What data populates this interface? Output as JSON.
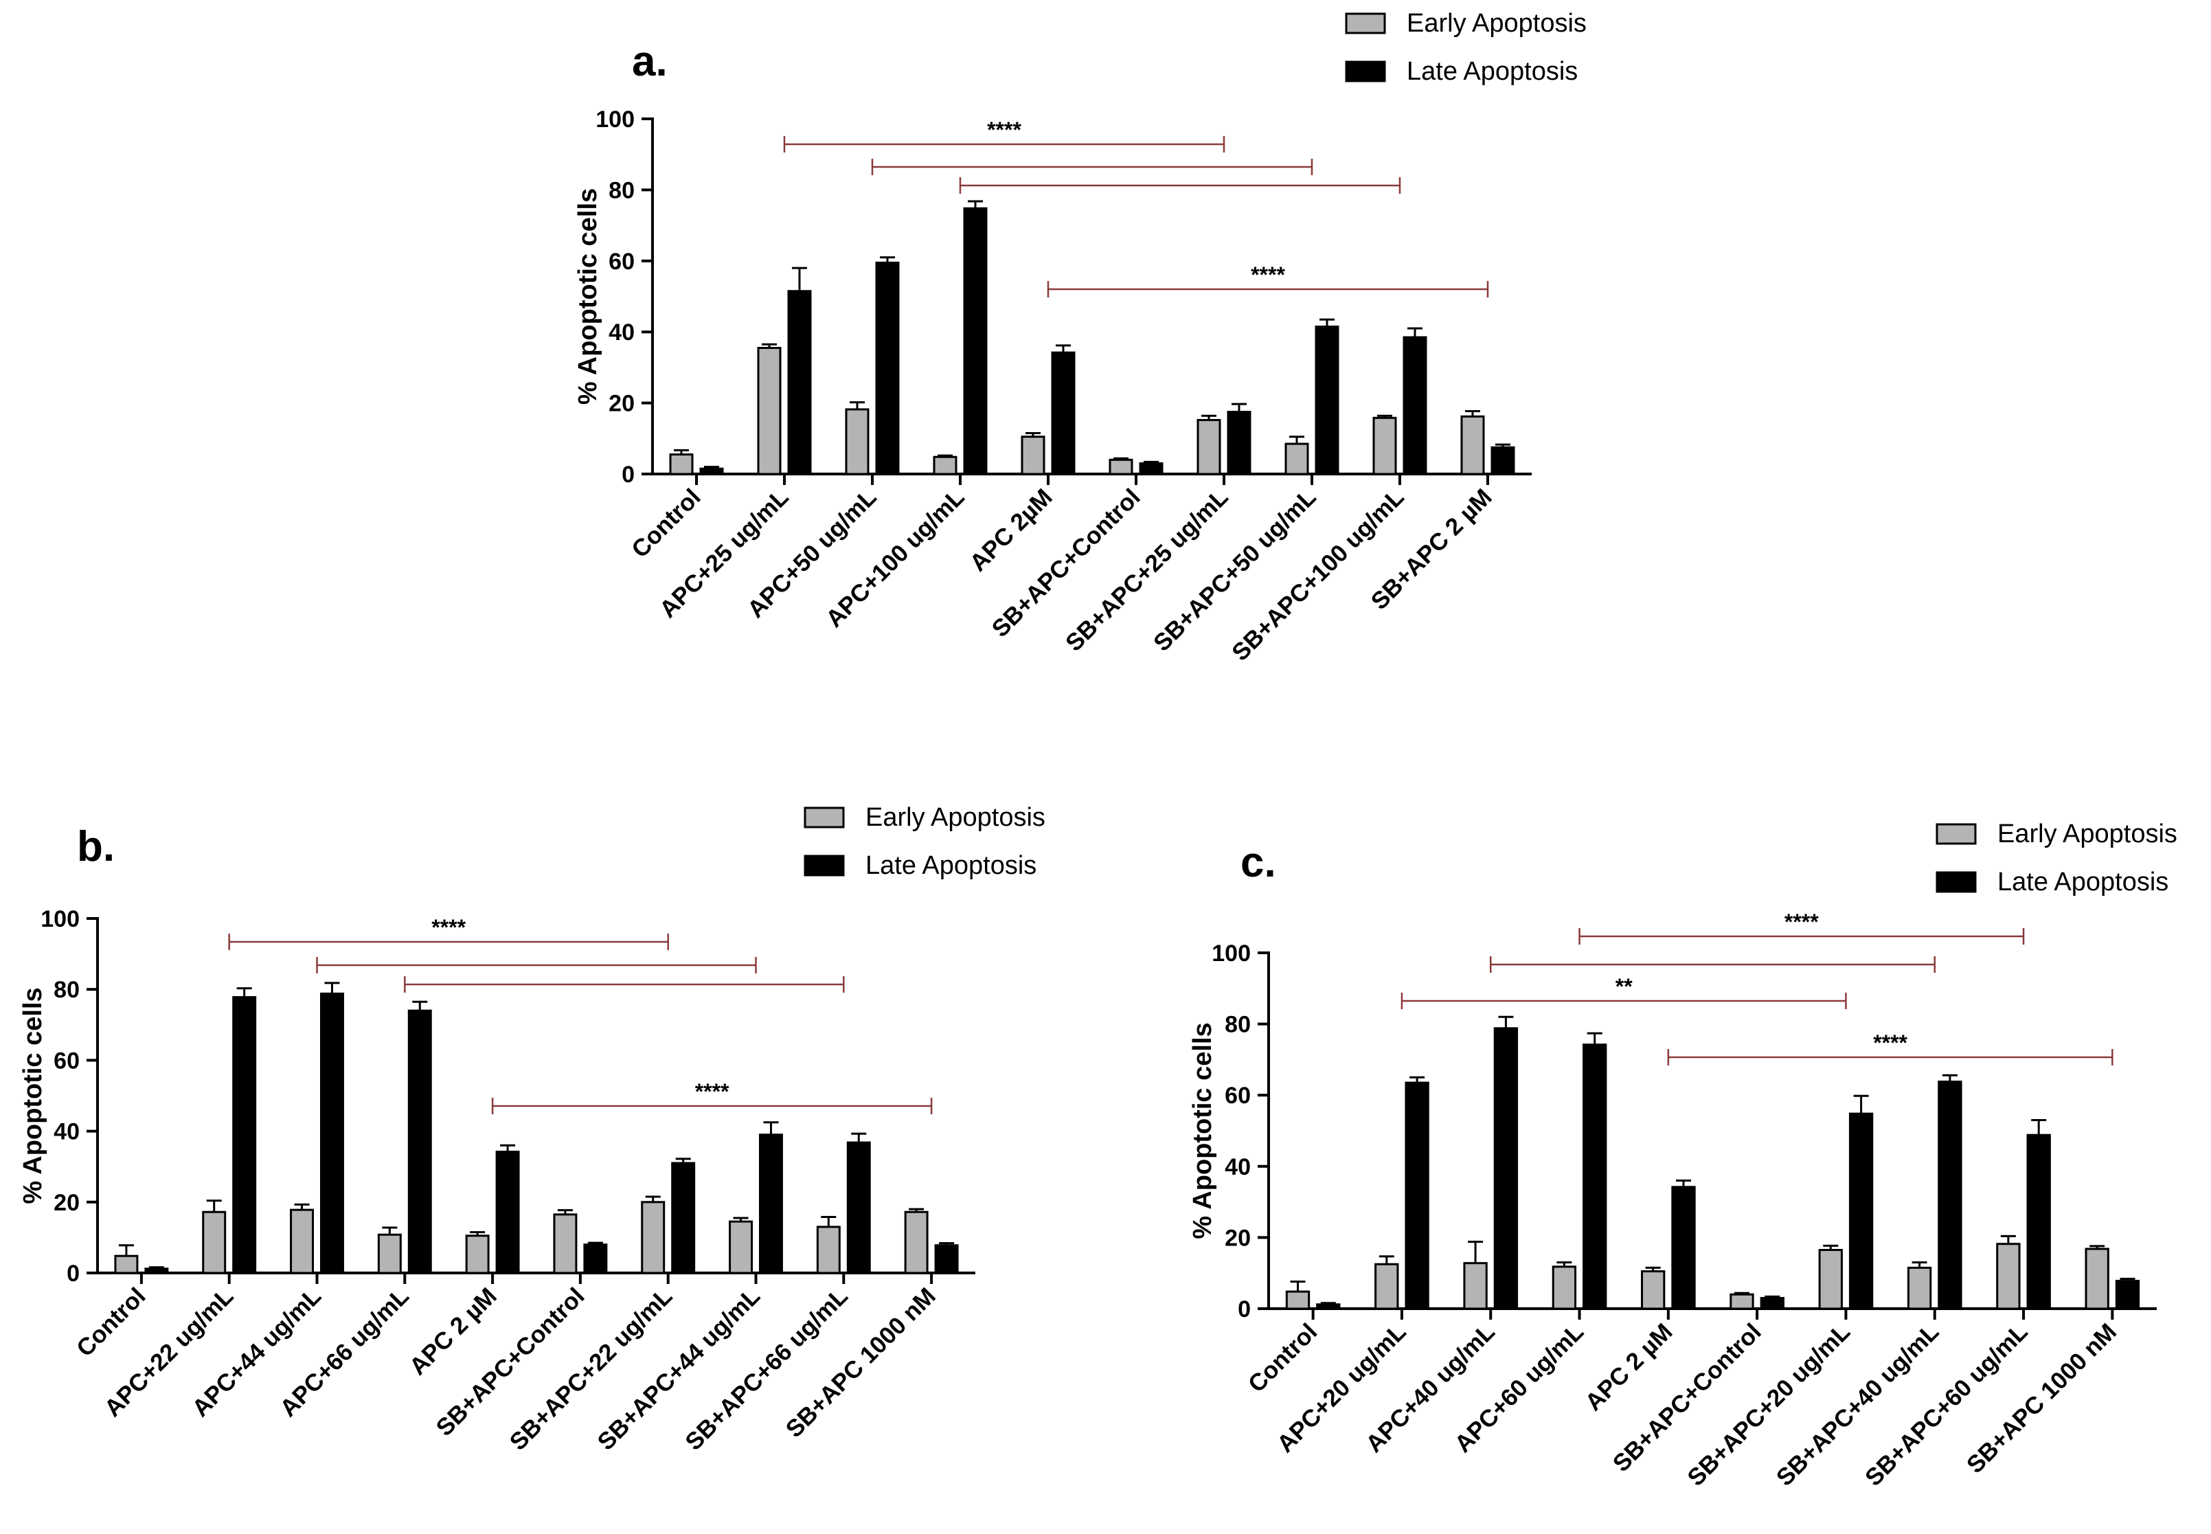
{
  "legend": {
    "early": "Early Apoptosis",
    "late": "Late Apoptosis"
  },
  "colors": {
    "early": "#b4b4b4",
    "late": "#000000",
    "bracket": "#8a3a3a"
  },
  "chart_data": [
    {
      "id": "a",
      "panel_label": "a.",
      "type": "bar",
      "ylabel": "% Apoptotic cells",
      "ylim": [
        0,
        100
      ],
      "yticks": [
        0,
        20,
        40,
        60,
        80,
        100
      ],
      "categories": [
        "Control",
        "APC+25 ug/mL",
        "APC+50 ug/mL",
        "APC+100 ug/mL",
        "APC 2µM",
        "SB+APC+Control",
        "SB+APC+25 ug/mL",
        "SB+APC+50 ug/mL",
        "SB+APC+100 ug/mL",
        "SB+APC 2 µM"
      ],
      "series": [
        {
          "name": "Early Apoptosis",
          "values": [
            5.5,
            35.5,
            18.2,
            4.8,
            10.5,
            4.0,
            15.2,
            8.5,
            15.8,
            16.2
          ],
          "errors": [
            1.2,
            1.0,
            2.0,
            0.4,
            1.0,
            0.4,
            1.2,
            2.0,
            0.6,
            1.5
          ]
        },
        {
          "name": "Late Apoptosis",
          "values": [
            1.5,
            51.5,
            59.5,
            74.8,
            34.2,
            3.0,
            17.5,
            41.5,
            38.5,
            7.5
          ],
          "errors": [
            0.5,
            6.5,
            1.5,
            2.0,
            2.0,
            0.4,
            2.2,
            2.0,
            2.5,
            0.8
          ]
        }
      ],
      "brackets": [
        {
          "from": 1,
          "to": 6,
          "label": "****"
        },
        {
          "from": 2,
          "to": 7,
          "label": ""
        },
        {
          "from": 3,
          "to": 8,
          "label": ""
        },
        {
          "from": 4,
          "to": 9,
          "label": "****"
        }
      ]
    },
    {
      "id": "b",
      "panel_label": "b.",
      "type": "bar",
      "ylabel": "% Apoptotic cells",
      "ylim": [
        0,
        100
      ],
      "yticks": [
        0,
        20,
        40,
        60,
        80,
        100
      ],
      "categories": [
        "Control",
        "APC+22 ug/mL",
        "APC+44 ug/mL",
        "APC+66 ug/mL",
        "APC 2 µM",
        "SB+APC+Control",
        "SB+APC+22 ug/mL",
        "SB+APC+44 ug/mL",
        "SB+APC+66 ug/mL",
        "SB+APC 1000 nM"
      ],
      "series": [
        {
          "name": "Early Apoptosis",
          "values": [
            4.8,
            17.2,
            17.8,
            10.8,
            10.5,
            16.5,
            20.0,
            14.5,
            13.0,
            17.2
          ],
          "errors": [
            3.0,
            3.2,
            1.5,
            2.0,
            1.0,
            1.2,
            1.5,
            1.0,
            2.8,
            0.8
          ]
        },
        {
          "name": "Late Apoptosis",
          "values": [
            1.2,
            77.8,
            78.8,
            74.0,
            34.2,
            8.0,
            31.0,
            39.0,
            36.8,
            7.8
          ],
          "errors": [
            0.4,
            2.5,
            3.0,
            2.5,
            1.8,
            0.5,
            1.2,
            3.5,
            2.5,
            0.6
          ]
        }
      ],
      "brackets": [
        {
          "from": 1,
          "to": 6,
          "label": "****"
        },
        {
          "from": 2,
          "to": 7,
          "label": ""
        },
        {
          "from": 3,
          "to": 8,
          "label": ""
        },
        {
          "from": 4,
          "to": 9,
          "label": "****"
        }
      ]
    },
    {
      "id": "c",
      "panel_label": "c.",
      "type": "bar",
      "ylabel": "% Apoptotic cells",
      "ylim": [
        0,
        100
      ],
      "yticks": [
        0,
        20,
        40,
        60,
        80,
        100
      ],
      "categories": [
        "Control",
        "APC+20 ug/mL",
        "APC+40 ug/mL",
        "APC+60 ug/mL",
        "APC 2 µM",
        "SB+APC+Control",
        "SB+APC+20 ug/mL",
        "SB+APC+40 ug/mL",
        "SB+APC+60 ug/mL",
        "SB+APC 1000 nM"
      ],
      "series": [
        {
          "name": "Early Apoptosis",
          "values": [
            4.8,
            12.5,
            12.8,
            11.8,
            10.5,
            4.0,
            16.5,
            11.5,
            18.2,
            16.8
          ],
          "errors": [
            2.8,
            2.2,
            6.0,
            1.2,
            1.0,
            0.4,
            1.2,
            1.5,
            2.2,
            0.8
          ]
        },
        {
          "name": "Late Apoptosis",
          "values": [
            1.2,
            63.5,
            78.8,
            74.2,
            34.2,
            3.0,
            54.8,
            63.8,
            48.8,
            7.8
          ],
          "errors": [
            0.4,
            1.5,
            3.2,
            3.2,
            1.8,
            0.4,
            5.0,
            1.8,
            4.2,
            0.6
          ]
        }
      ],
      "brackets": [
        {
          "from": 3,
          "to": 8,
          "label": "****"
        },
        {
          "from": 2,
          "to": 7,
          "label": ""
        },
        {
          "from": 1,
          "to": 6,
          "label": "**"
        },
        {
          "from": 4,
          "to": 9,
          "label": "****"
        }
      ]
    }
  ]
}
